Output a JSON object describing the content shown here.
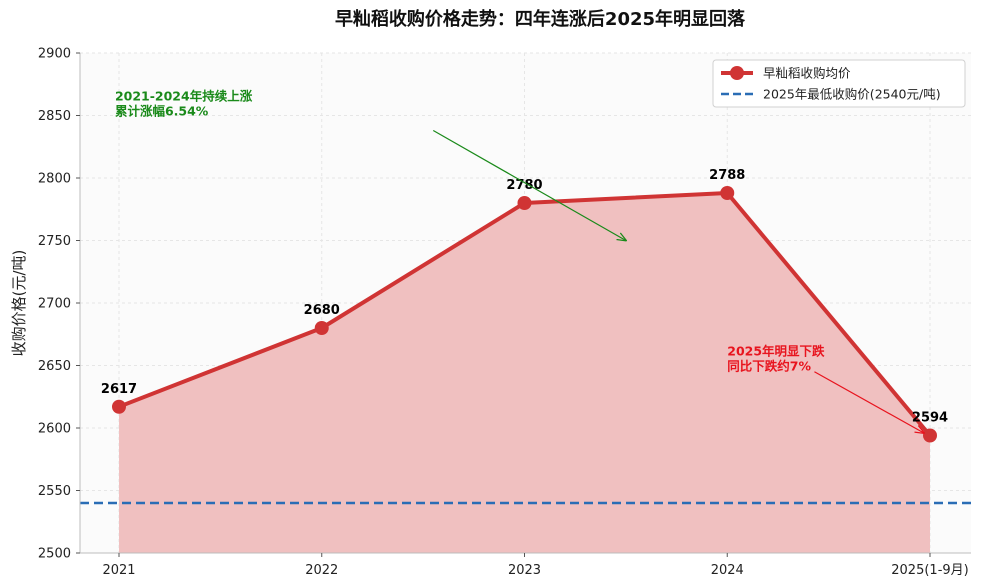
{
  "chart_data": {
    "type": "line",
    "title": "早籼稻收购价格走势：四年连涨后2025年明显回落",
    "xlabel": "",
    "ylabel": "收购价格(元/吨)",
    "categories": [
      "2021",
      "2022",
      "2023",
      "2024",
      "2025(1-9月)"
    ],
    "series": [
      {
        "name": "早籼稻收购均价",
        "values": [
          2617,
          2680,
          2780,
          2788,
          2594
        ],
        "color": "#d03434",
        "fill": "#f0c0c0"
      }
    ],
    "reference_line": {
      "name": "2025年最低收购价(2540元/吨)",
      "value": 2540,
      "color": "#2a6db5"
    },
    "ylim": [
      2500,
      2900
    ],
    "yticks": [
      2500,
      2550,
      2600,
      2650,
      2700,
      2750,
      2800,
      2850,
      2900
    ],
    "data_labels": [
      "2617",
      "2680",
      "2780",
      "2788",
      "2594"
    ],
    "grid": true,
    "legend_position": "top-right",
    "annotations": [
      {
        "lines": [
          "2021-2024年持续上涨",
          "累计涨幅6.54%"
        ],
        "color": "#1a8a1a",
        "text_at": [
          -0.02,
          2862
        ],
        "arrow_from": [
          1.55,
          2838
        ],
        "arrow_to": [
          2.5,
          2750
        ]
      },
      {
        "lines": [
          "2025年明显下跌",
          "同比下跌约7%"
        ],
        "color": "#e8141e",
        "text_at": [
          3.0,
          2658
        ],
        "arrow_from": [
          3.43,
          2645
        ],
        "arrow_to": [
          3.97,
          2596
        ]
      }
    ]
  }
}
